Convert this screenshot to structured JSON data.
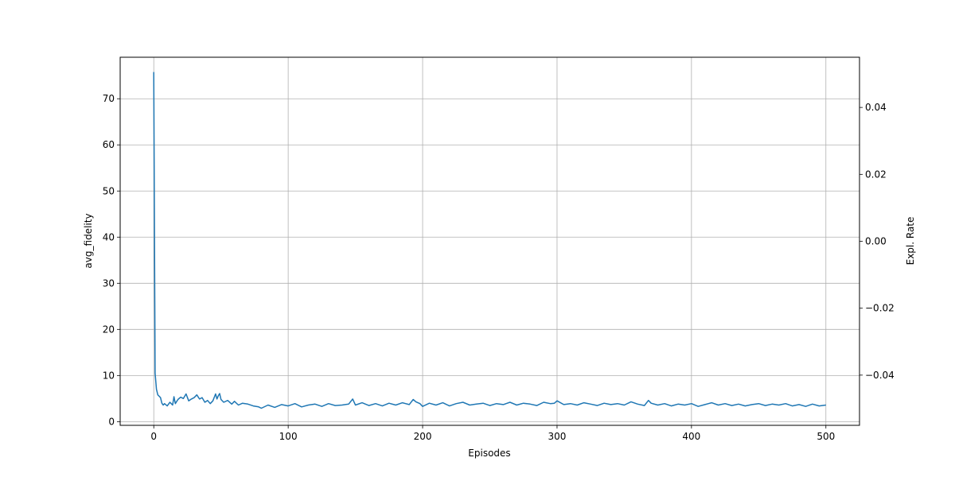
{
  "chart_data": {
    "type": "line",
    "title": "",
    "xlabel": "Episodes",
    "ylabel": "avg_fidelity",
    "y2label": "Expl. Rate",
    "xlim": [
      -25,
      525
    ],
    "ylim": [
      -0.8,
      79
    ],
    "y2lim": [
      -0.055,
      0.055
    ],
    "xticks": [
      0,
      100,
      200,
      300,
      400,
      500
    ],
    "yticks": [
      0,
      10,
      20,
      30,
      40,
      50,
      60,
      70
    ],
    "y2ticks": [
      -0.04,
      -0.02,
      0.0,
      0.02,
      0.04
    ],
    "y2ticklabels": [
      "−0.04",
      "−0.02",
      "0.00",
      "0.02",
      "0.04"
    ],
    "grid": true,
    "line_color": "#1f77b4",
    "series": [
      {
        "x": [
          0,
          1,
          2,
          3,
          4,
          5,
          6,
          7,
          8,
          10,
          12,
          14,
          15,
          16,
          18,
          20,
          22,
          24,
          26,
          28,
          30,
          32,
          34,
          36,
          38,
          40,
          42,
          44,
          46,
          47,
          48,
          49,
          50,
          52,
          55,
          58,
          60,
          63,
          66,
          70,
          74,
          78,
          80,
          85,
          90,
          95,
          100,
          105,
          110,
          115,
          120,
          125,
          130,
          135,
          140,
          145,
          148,
          150,
          155,
          160,
          165,
          170,
          175,
          180,
          185,
          190,
          193,
          195,
          198,
          200,
          205,
          210,
          215,
          220,
          225,
          230,
          235,
          240,
          245,
          250,
          255,
          260,
          265,
          270,
          275,
          280,
          285,
          290,
          295,
          298,
          300,
          305,
          310,
          315,
          320,
          325,
          330,
          335,
          340,
          345,
          350,
          355,
          360,
          365,
          368,
          370,
          375,
          380,
          385,
          390,
          395,
          400,
          405,
          410,
          415,
          420,
          425,
          430,
          435,
          440,
          445,
          450,
          455,
          460,
          465,
          470,
          475,
          480,
          485,
          490,
          495,
          500
        ],
        "y": [
          75.8,
          10.5,
          7.0,
          5.8,
          5.5,
          5.2,
          4.0,
          3.6,
          3.9,
          3.4,
          4.2,
          3.6,
          5.4,
          3.9,
          4.8,
          5.3,
          5.0,
          6.0,
          4.5,
          4.9,
          5.2,
          5.8,
          4.9,
          5.2,
          4.2,
          4.6,
          3.9,
          4.5,
          6.0,
          4.9,
          5.6,
          6.1,
          4.8,
          4.2,
          4.6,
          3.8,
          4.4,
          3.6,
          4.0,
          3.8,
          3.4,
          3.2,
          2.9,
          3.6,
          3.1,
          3.7,
          3.4,
          3.9,
          3.2,
          3.6,
          3.8,
          3.3,
          3.9,
          3.5,
          3.6,
          3.8,
          4.9,
          3.6,
          4.1,
          3.5,
          3.9,
          3.4,
          4.0,
          3.6,
          4.1,
          3.7,
          4.8,
          4.3,
          3.9,
          3.3,
          4.0,
          3.6,
          4.1,
          3.4,
          3.9,
          4.2,
          3.6,
          3.8,
          4.0,
          3.5,
          3.9,
          3.7,
          4.2,
          3.6,
          4.0,
          3.8,
          3.5,
          4.2,
          3.9,
          4.0,
          4.5,
          3.7,
          3.9,
          3.6,
          4.1,
          3.8,
          3.5,
          4.0,
          3.7,
          3.9,
          3.6,
          4.3,
          3.8,
          3.5,
          4.6,
          4.0,
          3.6,
          3.9,
          3.4,
          3.8,
          3.6,
          3.9,
          3.3,
          3.7,
          4.1,
          3.6,
          3.9,
          3.5,
          3.8,
          3.4,
          3.7,
          3.9,
          3.5,
          3.8,
          3.6,
          3.9,
          3.4,
          3.7,
          3.3,
          3.8,
          3.4,
          3.6
        ]
      }
    ]
  }
}
